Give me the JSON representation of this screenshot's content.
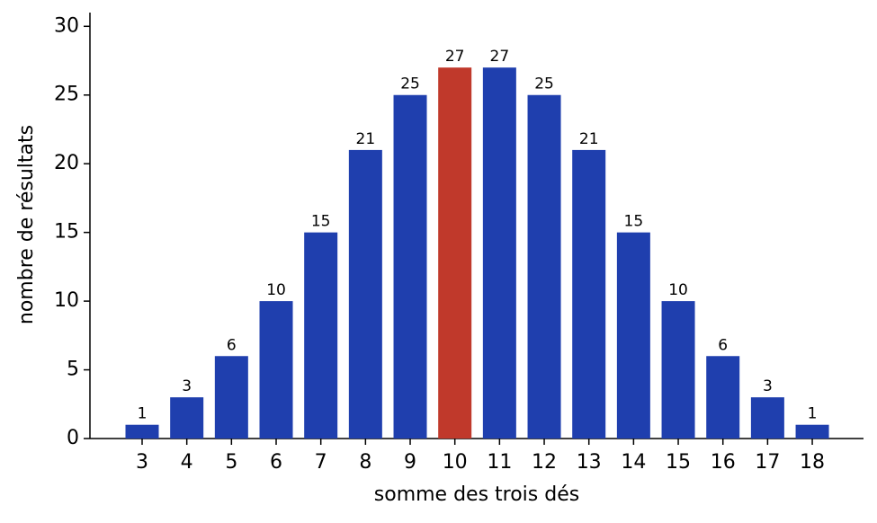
{
  "chart_data": {
    "type": "bar",
    "xlabel": "somme des trois dés",
    "ylabel": "nombre de résultats",
    "categories": [
      3,
      4,
      5,
      6,
      7,
      8,
      9,
      10,
      11,
      12,
      13,
      14,
      15,
      16,
      17,
      18
    ],
    "values": [
      1,
      3,
      6,
      10,
      15,
      21,
      25,
      27,
      27,
      25,
      21,
      15,
      10,
      6,
      3,
      1
    ],
    "colors": [
      "#1f3fae",
      "#1f3fae",
      "#1f3fae",
      "#1f3fae",
      "#1f3fae",
      "#1f3fae",
      "#1f3fae",
      "#c0392b",
      "#1f3fae",
      "#1f3fae",
      "#1f3fae",
      "#1f3fae",
      "#1f3fae",
      "#1f3fae",
      "#1f3fae",
      "#1f3fae"
    ],
    "ylim": [
      0,
      31
    ],
    "yticks": [
      0,
      5,
      10,
      15,
      20,
      25,
      30
    ],
    "grid": false
  }
}
